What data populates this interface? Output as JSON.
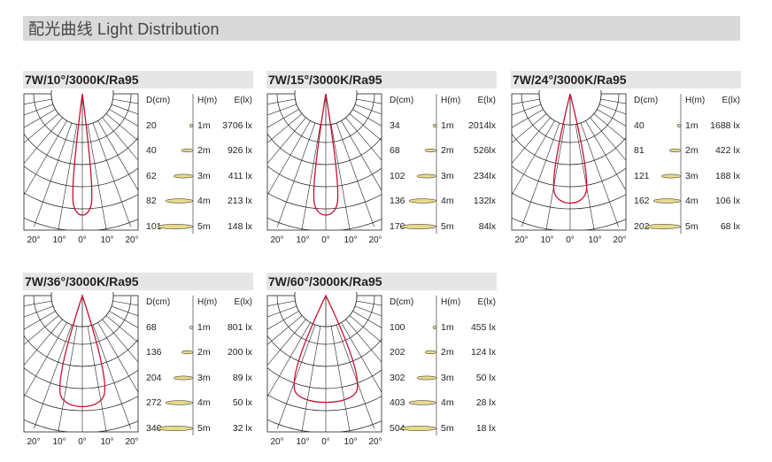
{
  "header": {
    "title": "配光曲线  Light Distribution"
  },
  "angle_labels": [
    "20°",
    "10°",
    "0°",
    "10°",
    "20°"
  ],
  "column_headers": {
    "distance": "D(cm)",
    "height": "H(m)",
    "illuminance": "E(lx)"
  },
  "heights": [
    "1m",
    "2m",
    "3m",
    "4m",
    "5m"
  ],
  "colors": {
    "curve": "#c8102e",
    "spot": "#e8d98a",
    "grid": "#222222"
  },
  "panels": [
    {
      "title": "7W/10°/3000K/Ra95",
      "beam_angle": 10,
      "distances": [
        "20",
        "40",
        "62",
        "82",
        "101"
      ],
      "lux": [
        "3706 lx",
        "926 lx",
        "411 lx",
        "213 lx",
        "148 lx"
      ]
    },
    {
      "title": "7W/15°/3000K/Ra95",
      "beam_angle": 15,
      "distances": [
        "34",
        "68",
        "102",
        "136",
        "170"
      ],
      "lux": [
        "2014lx",
        "526lx",
        "234lx",
        "132lx",
        "84lx"
      ]
    },
    {
      "title": "7W/24°/3000K/Ra95",
      "beam_angle": 24,
      "distances": [
        "40",
        "81",
        "121",
        "162",
        "202"
      ],
      "lux": [
        "1688 lx",
        "422 lx",
        "188 lx",
        "106 lx",
        "68 lx"
      ]
    },
    {
      "title": "7W/36°/3000K/Ra95",
      "beam_angle": 36,
      "distances": [
        "68",
        "136",
        "204",
        "272",
        "340"
      ],
      "lux": [
        "801 lx",
        "200 lx",
        "89 lx",
        "50 lx",
        "32 lx"
      ]
    },
    {
      "title": "7W/60°/3000K/Ra95",
      "beam_angle": 60,
      "distances": [
        "100",
        "202",
        "302",
        "403",
        "504"
      ],
      "lux": [
        "455 lx",
        "124 lx",
        "50 lx",
        "28 lx",
        "18 lx"
      ]
    }
  ]
}
